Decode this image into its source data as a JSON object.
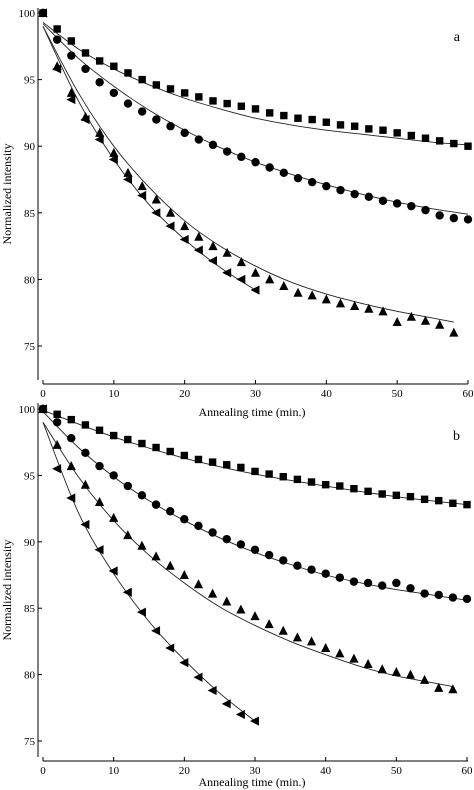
{
  "chart_data": [
    {
      "type": "scatter",
      "panel_label": "a",
      "xlabel": "Annealing time (min.)",
      "ylabel": "Normalized intensity",
      "xlim": [
        0,
        60
      ],
      "ylim": [
        75,
        100
      ],
      "xticks": [
        0,
        10,
        20,
        30,
        40,
        50,
        60
      ],
      "yticks": [
        75,
        80,
        85,
        90,
        95,
        100
      ],
      "grid": false,
      "legend": "none",
      "series": [
        {
          "marker": "square",
          "x": [
            0,
            2,
            4,
            6,
            8,
            10,
            12,
            14,
            16,
            18,
            20,
            22,
            24,
            26,
            28,
            30,
            32,
            34,
            36,
            38,
            40,
            42,
            44,
            46,
            48,
            50,
            52,
            54,
            56,
            58,
            60
          ],
          "y": [
            100.0,
            98.8,
            97.9,
            97.0,
            96.4,
            96.0,
            95.5,
            95.0,
            94.6,
            94.3,
            94.0,
            93.7,
            93.4,
            93.2,
            93.0,
            92.8,
            92.5,
            92.3,
            92.1,
            92.0,
            91.8,
            91.6,
            91.5,
            91.3,
            91.2,
            91.0,
            90.8,
            90.6,
            90.4,
            90.2,
            90.0
          ],
          "fit": [
            [
              0,
              99.3
            ],
            [
              5,
              97.3
            ],
            [
              10,
              95.8
            ],
            [
              15,
              94.6
            ],
            [
              20,
              93.6
            ],
            [
              25,
              92.8
            ],
            [
              30,
              92.1
            ],
            [
              35,
              91.6
            ],
            [
              40,
              91.2
            ],
            [
              45,
              90.9
            ],
            [
              50,
              90.6
            ],
            [
              55,
              90.3
            ],
            [
              60,
              90.1
            ]
          ]
        },
        {
          "marker": "circle",
          "x": [
            0,
            2,
            4,
            6,
            8,
            10,
            12,
            14,
            16,
            18,
            20,
            22,
            24,
            26,
            28,
            30,
            32,
            34,
            36,
            38,
            40,
            42,
            44,
            46,
            48,
            50,
            52,
            54,
            56,
            58,
            60
          ],
          "y": [
            100.0,
            98.0,
            96.8,
            95.8,
            94.8,
            94.0,
            93.2,
            92.6,
            92.0,
            91.5,
            91.0,
            90.5,
            90.1,
            89.6,
            89.2,
            88.8,
            88.4,
            88.0,
            87.6,
            87.3,
            87.0,
            86.7,
            86.4,
            86.2,
            85.9,
            85.7,
            85.5,
            85.2,
            84.8,
            84.6,
            84.5
          ],
          "fit": [
            [
              0,
              99.2
            ],
            [
              5,
              96.6
            ],
            [
              10,
              94.5
            ],
            [
              15,
              92.7
            ],
            [
              20,
              91.2
            ],
            [
              25,
              89.9
            ],
            [
              30,
              88.8
            ],
            [
              35,
              87.9
            ],
            [
              40,
              87.1
            ],
            [
              45,
              86.4
            ],
            [
              50,
              85.8
            ],
            [
              55,
              85.3
            ],
            [
              60,
              84.9
            ]
          ]
        },
        {
          "marker": "triangle-up",
          "x": [
            0,
            2,
            4,
            6,
            8,
            10,
            12,
            14,
            16,
            18,
            20,
            22,
            24,
            26,
            28,
            30,
            32,
            34,
            36,
            38,
            40,
            42,
            44,
            46,
            48,
            50,
            52,
            54,
            56,
            58
          ],
          "y": [
            100.0,
            96.0,
            94.0,
            92.2,
            91.0,
            89.5,
            88.0,
            87.0,
            86.0,
            85.0,
            84.0,
            83.2,
            82.5,
            82.0,
            81.3,
            80.5,
            80.0,
            79.5,
            79.0,
            78.8,
            78.5,
            78.2,
            78.0,
            77.8,
            77.6,
            76.8,
            77.2,
            76.9,
            76.6,
            76.0
          ],
          "fit": [
            [
              0,
              99.0
            ],
            [
              5,
              94.0
            ],
            [
              10,
              90.0
            ],
            [
              15,
              86.9
            ],
            [
              20,
              84.4
            ],
            [
              25,
              82.5
            ],
            [
              30,
              81.0
            ],
            [
              35,
              79.8
            ],
            [
              40,
              78.9
            ],
            [
              45,
              78.2
            ],
            [
              50,
              77.6
            ],
            [
              55,
              77.1
            ],
            [
              58,
              76.8
            ]
          ]
        },
        {
          "marker": "triangle-left",
          "x": [
            0,
            2,
            4,
            6,
            8,
            10,
            12,
            14,
            16,
            18,
            20,
            22,
            24,
            26,
            28,
            30
          ],
          "y": [
            100.0,
            95.8,
            93.5,
            92.0,
            90.5,
            89.0,
            87.5,
            86.3,
            85.0,
            84.0,
            83.0,
            82.2,
            81.4,
            80.5,
            80.0,
            79.2
          ],
          "fit": [
            [
              0,
              99.0
            ],
            [
              5,
              93.4
            ],
            [
              10,
              89.0
            ],
            [
              15,
              85.6
            ],
            [
              20,
              83.0
            ],
            [
              25,
              80.9
            ],
            [
              30,
              79.2
            ]
          ]
        }
      ]
    },
    {
      "type": "scatter",
      "panel_label": "b",
      "xlabel": "Annealing time (min.)",
      "ylabel": "Normalized intensity",
      "xlim": [
        0,
        60
      ],
      "ylim": [
        75,
        100
      ],
      "xticks": [
        0,
        10,
        20,
        30,
        40,
        50,
        60
      ],
      "yticks": [
        75,
        80,
        85,
        90,
        95,
        100
      ],
      "grid": false,
      "legend": "none",
      "series": [
        {
          "marker": "square",
          "x": [
            0,
            2,
            4,
            6,
            8,
            10,
            12,
            14,
            16,
            18,
            20,
            22,
            24,
            26,
            28,
            30,
            32,
            34,
            36,
            38,
            40,
            42,
            44,
            46,
            48,
            50,
            52,
            54,
            56,
            58,
            60
          ],
          "y": [
            100.0,
            99.6,
            99.2,
            98.8,
            98.4,
            98.0,
            97.7,
            97.4,
            97.1,
            96.8,
            96.5,
            96.2,
            96.0,
            95.8,
            95.6,
            95.3,
            95.1,
            94.9,
            94.7,
            94.5,
            94.3,
            94.2,
            94.0,
            93.8,
            93.6,
            93.5,
            93.4,
            93.2,
            93.1,
            92.9,
            92.8
          ],
          "fit": [
            [
              0,
              99.9
            ],
            [
              10,
              97.9
            ],
            [
              20,
              96.3
            ],
            [
              30,
              95.1
            ],
            [
              40,
              94.2
            ],
            [
              50,
              93.4
            ],
            [
              60,
              92.8
            ]
          ]
        },
        {
          "marker": "circle",
          "x": [
            0,
            2,
            4,
            6,
            8,
            10,
            12,
            14,
            16,
            18,
            20,
            22,
            24,
            26,
            28,
            30,
            32,
            34,
            36,
            38,
            40,
            42,
            44,
            46,
            48,
            50,
            52,
            54,
            56,
            58,
            60
          ],
          "y": [
            100.0,
            99.0,
            97.8,
            96.7,
            95.7,
            95.0,
            94.2,
            93.5,
            92.8,
            92.3,
            91.7,
            91.2,
            90.7,
            90.2,
            89.8,
            89.4,
            89.0,
            88.6,
            88.2,
            87.9,
            87.6,
            87.3,
            87.0,
            86.9,
            86.7,
            86.9,
            86.5,
            86.1,
            86.0,
            85.8,
            85.7
          ],
          "fit": [
            [
              0,
              99.8
            ],
            [
              5,
              97.1
            ],
            [
              10,
              94.9
            ],
            [
              15,
              93.1
            ],
            [
              20,
              91.6
            ],
            [
              25,
              90.3
            ],
            [
              30,
              89.2
            ],
            [
              35,
              88.3
            ],
            [
              40,
              87.5
            ],
            [
              45,
              86.9
            ],
            [
              50,
              86.4
            ],
            [
              55,
              86.0
            ],
            [
              60,
              85.6
            ]
          ]
        },
        {
          "marker": "triangle-up",
          "x": [
            0,
            2,
            4,
            6,
            8,
            10,
            12,
            14,
            16,
            18,
            20,
            22,
            24,
            26,
            28,
            30,
            32,
            34,
            36,
            38,
            40,
            42,
            44,
            46,
            48,
            50,
            52,
            54,
            56,
            58
          ],
          "y": [
            100.0,
            97.3,
            95.7,
            94.3,
            93.0,
            91.8,
            90.5,
            89.7,
            88.9,
            88.2,
            87.5,
            86.8,
            86.1,
            85.5,
            84.9,
            84.4,
            83.8,
            83.3,
            82.8,
            82.5,
            82.0,
            81.6,
            81.2,
            80.8,
            80.4,
            80.2,
            80.0,
            79.6,
            79.0,
            78.9
          ],
          "fit": [
            [
              0,
              99.0
            ],
            [
              5,
              94.9
            ],
            [
              10,
              91.6
            ],
            [
              15,
              89.0
            ],
            [
              20,
              86.9
            ],
            [
              25,
              85.1
            ],
            [
              30,
              83.7
            ],
            [
              35,
              82.5
            ],
            [
              40,
              81.5
            ],
            [
              45,
              80.6
            ],
            [
              50,
              79.9
            ],
            [
              55,
              79.4
            ],
            [
              58,
              79.1
            ]
          ]
        },
        {
          "marker": "triangle-left",
          "x": [
            0,
            2,
            4,
            6,
            8,
            10,
            12,
            14,
            16,
            18,
            20,
            22,
            24,
            26,
            28,
            30
          ],
          "y": [
            100.0,
            95.5,
            93.3,
            91.3,
            89.4,
            87.8,
            86.2,
            84.7,
            83.3,
            82.0,
            80.9,
            79.8,
            78.8,
            77.8,
            77.0,
            76.5
          ],
          "fit": [
            [
              0,
              99.0
            ],
            [
              5,
              92.2
            ],
            [
              10,
              87.6
            ],
            [
              15,
              84.0
            ],
            [
              20,
              81.1
            ],
            [
              25,
              78.6
            ],
            [
              30,
              76.5
            ]
          ]
        }
      ]
    }
  ]
}
